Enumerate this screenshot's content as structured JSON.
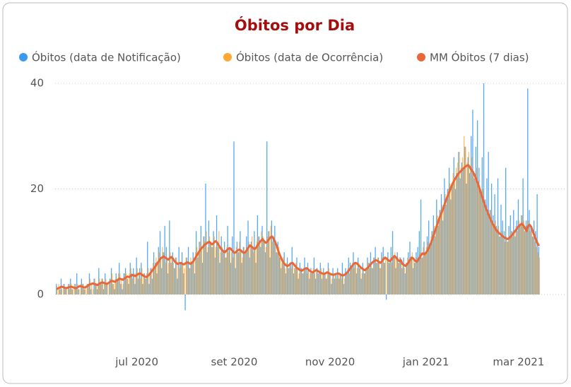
{
  "chart_data": {
    "type": "combo",
    "title": "Óbitos por Dia",
    "xlim": [
      -1,
      308
    ],
    "xticks": [
      {
        "value": 51,
        "label": "jul 2020"
      },
      {
        "value": 113,
        "label": "set 2020"
      },
      {
        "value": 174,
        "label": "nov 2020"
      },
      {
        "value": 235,
        "label": "jan 2021"
      },
      {
        "value": 294,
        "label": "mar 2021"
      }
    ],
    "ylim": [
      -5,
      40
    ],
    "yticks": [
      0,
      20,
      40
    ],
    "grid": true,
    "legend": "top",
    "series": [
      {
        "name": "Óbitos (data de Notificação)",
        "type": "bar",
        "color": "#3a9af0",
        "values": [
          2,
          0,
          1,
          3,
          0,
          2,
          1,
          0,
          2,
          3,
          1,
          0,
          2,
          4,
          1,
          0,
          3,
          2,
          1,
          0,
          2,
          4,
          1,
          0,
          3,
          2,
          1,
          5,
          2,
          3,
          1,
          4,
          2,
          0,
          3,
          5,
          2,
          1,
          4,
          3,
          6,
          2,
          1,
          4,
          5,
          3,
          2,
          6,
          4,
          5,
          2,
          7,
          3,
          5,
          6,
          2,
          4,
          3,
          10,
          2,
          5,
          3,
          8,
          6,
          4,
          9,
          12,
          5,
          8,
          13,
          9,
          4,
          14,
          6,
          8,
          5,
          7,
          3,
          9,
          6,
          8,
          4,
          -3,
          7,
          9,
          5,
          6,
          8,
          4,
          12,
          7,
          10,
          13,
          6,
          11,
          21,
          8,
          14,
          10,
          9,
          12,
          7,
          15,
          9,
          6,
          11,
          8,
          10,
          7,
          13,
          9,
          6,
          11,
          29,
          5,
          10,
          8,
          12,
          6,
          9,
          8,
          11,
          14,
          7,
          10,
          9,
          12,
          6,
          15,
          11,
          9,
          13,
          10,
          8,
          29,
          12,
          7,
          14,
          11,
          13,
          8,
          10,
          7,
          5,
          6,
          8,
          4,
          7,
          5,
          6,
          9,
          4,
          5,
          7,
          3,
          6,
          5,
          4,
          7,
          5,
          6,
          3,
          5,
          4,
          7,
          3,
          5,
          4,
          6,
          3,
          5,
          4,
          3,
          6,
          4,
          2,
          5,
          3,
          4,
          5,
          3,
          4,
          6,
          2,
          5,
          4,
          7,
          6,
          5,
          8,
          6,
          4,
          7,
          5,
          3,
          6,
          4,
          5,
          7,
          6,
          8,
          5,
          7,
          9,
          6,
          7,
          5,
          8,
          9,
          6,
          -1,
          8,
          6,
          9,
          12,
          7,
          5,
          8,
          6,
          7,
          5,
          7,
          4,
          6,
          8,
          10,
          7,
          5,
          6,
          8,
          9,
          12,
          18,
          7,
          10,
          8,
          11,
          14,
          9,
          12,
          15,
          11,
          18,
          13,
          16,
          19,
          14,
          22,
          17,
          20,
          24,
          18,
          21,
          26,
          20,
          23,
          27,
          22,
          25,
          24,
          28,
          21,
          26,
          23,
          30,
          35,
          22,
          28,
          33,
          24,
          20,
          26,
          40,
          18,
          22,
          27,
          16,
          21,
          15,
          19,
          13,
          22,
          11,
          17,
          14,
          12,
          24,
          10,
          13,
          15,
          12,
          16,
          11,
          14,
          18,
          13,
          15,
          22,
          12,
          14,
          39,
          16,
          13,
          11,
          14,
          12,
          19,
          9
        ]
      },
      {
        "name": "Óbitos (data de Ocorrência)",
        "type": "bar",
        "color": "#ffa733",
        "values": [
          1,
          2,
          1,
          1,
          2,
          1,
          1,
          2,
          1,
          2,
          1,
          2,
          1,
          2,
          1,
          2,
          2,
          1,
          1,
          2,
          2,
          3,
          2,
          1,
          3,
          2,
          2,
          3,
          2,
          3,
          2,
          3,
          2,
          2,
          3,
          4,
          2,
          3,
          3,
          4,
          4,
          3,
          2,
          4,
          4,
          3,
          4,
          5,
          3,
          4,
          4,
          5,
          4,
          3,
          5,
          4,
          3,
          4,
          5,
          4,
          5,
          6,
          5,
          7,
          6,
          8,
          7,
          9,
          8,
          6,
          7,
          6,
          8,
          7,
          6,
          5,
          7,
          6,
          5,
          6,
          6,
          5,
          7,
          6,
          5,
          7,
          6,
          7,
          8,
          9,
          8,
          10,
          9,
          11,
          10,
          12,
          9,
          11,
          10,
          9,
          11,
          9,
          10,
          12,
          8,
          9,
          8,
          7,
          9,
          8,
          9,
          8,
          7,
          8,
          9,
          8,
          10,
          8,
          7,
          9,
          8,
          9,
          10,
          9,
          11,
          8,
          9,
          10,
          11,
          10,
          12,
          11,
          10,
          9,
          11,
          12,
          13,
          10,
          11,
          9,
          8,
          9,
          7,
          6,
          7,
          5,
          6,
          5,
          6,
          5,
          6,
          5,
          6,
          5,
          4,
          5,
          4,
          5,
          5,
          4,
          5,
          4,
          4,
          5,
          4,
          5,
          4,
          4,
          5,
          4,
          4,
          3,
          4,
          5,
          4,
          3,
          4,
          4,
          3,
          4,
          4,
          3,
          4,
          3,
          4,
          5,
          4,
          5,
          6,
          5,
          6,
          5,
          6,
          5,
          4,
          5,
          4,
          5,
          6,
          5,
          6,
          5,
          7,
          6,
          7,
          6,
          5,
          7,
          6,
          7,
          7,
          6,
          7,
          6,
          7,
          8,
          7,
          6,
          7,
          6,
          6,
          5,
          6,
          7,
          6,
          7,
          8,
          7,
          6,
          7,
          7,
          8,
          7,
          9,
          8,
          9,
          10,
          9,
          11,
          12,
          13,
          12,
          15,
          14,
          16,
          17,
          16,
          19,
          18,
          20,
          21,
          20,
          23,
          22,
          24,
          25,
          27,
          24,
          26,
          30,
          28,
          25,
          27,
          24,
          26,
          23,
          22,
          24,
          21,
          20,
          19,
          20,
          18,
          17,
          16,
          15,
          16,
          14,
          13,
          14,
          12,
          13,
          11,
          12,
          11,
          10,
          11,
          10,
          11,
          12,
          11,
          12,
          13,
          12,
          14,
          13,
          15,
          14,
          12,
          13,
          14,
          12,
          13,
          11,
          10,
          9,
          8,
          7
        ]
      },
      {
        "name": "MM Óbitos (7 dias)",
        "type": "line",
        "color": "#e8683a",
        "values": [
          1,
          1.2,
          1.3,
          1.5,
          1.4,
          1.3,
          1.2,
          1.3,
          1.4,
          1.5,
          1.4,
          1.3,
          1.2,
          1.3,
          1.5,
          1.6,
          1.5,
          1.4,
          1.3,
          1.5,
          1.7,
          1.9,
          2,
          2.1,
          2,
          1.9,
          1.8,
          2,
          2.2,
          2.3,
          2.2,
          2.1,
          2,
          2.2,
          2.4,
          2.6,
          2.5,
          2.4,
          2.6,
          2.8,
          3,
          2.9,
          2.8,
          3,
          3.2,
          3.4,
          3.3,
          3.5,
          3.7,
          3.6,
          3.5,
          3.7,
          3.9,
          4,
          3.8,
          3.6,
          3.4,
          3.3,
          3.5,
          3.8,
          4.2,
          4.6,
          5,
          5.4,
          5.9,
          6.3,
          6.8,
          7,
          7.2,
          7,
          6.8,
          6.6,
          6.9,
          7.1,
          6.8,
          6.3,
          6,
          5.8,
          5.9,
          6,
          5.8,
          5.7,
          5.9,
          6.1,
          6,
          5.8,
          6,
          6.3,
          6.8,
          7.3,
          7.8,
          8.3,
          8.7,
          9,
          9.4,
          9.6,
          9.8,
          10,
          9.7,
          9.5,
          9.8,
          10.1,
          9.9,
          9.4,
          8.9,
          8.5,
          8.2,
          8,
          8.3,
          8.6,
          8.8,
          8.6,
          8.2,
          7.9,
          8,
          8.3,
          8.5,
          8.4,
          8.1,
          7.9,
          8,
          8.4,
          8.9,
          9.3,
          9.1,
          8.8,
          8.6,
          8.9,
          9.4,
          9.8,
          10.2,
          10.5,
          10.1,
          9.8,
          10,
          10.4,
          10.8,
          11,
          10.6,
          10,
          9.2,
          8.3,
          7.5,
          6.8,
          6.2,
          5.8,
          5.5,
          5.4,
          5.6,
          5.9,
          6,
          5.7,
          5.3,
          5,
          4.8,
          4.6,
          4.5,
          4.7,
          4.9,
          5,
          4.8,
          4.5,
          4.3,
          4.2,
          4.4,
          4.6,
          4.5,
          4.3,
          4.1,
          4,
          3.9,
          4,
          4.2,
          4.1,
          3.9,
          3.8,
          3.7,
          3.8,
          3.9,
          4,
          3.9,
          3.7,
          3.6,
          3.7,
          3.9,
          4.2,
          4.6,
          5,
          5.4,
          5.8,
          6,
          5.9,
          5.6,
          5.3,
          5,
          4.8,
          4.6,
          4.8,
          5.1,
          5.4,
          5.8,
          6.1,
          6.3,
          6.5,
          6.4,
          6.2,
          6,
          6.3,
          6.7,
          7,
          6.8,
          6.5,
          6.3,
          6.6,
          7,
          7.3,
          7,
          6.6,
          6.3,
          6.5,
          5.8,
          5.6,
          5.4,
          5.7,
          6.1,
          6.6,
          7,
          6.8,
          6.4,
          6.2,
          6.5,
          7,
          7.5,
          7.8,
          7.6,
          7.9,
          8.3,
          8.9,
          9.6,
          10.4,
          11.3,
          12.2,
          13.1,
          14,
          14.8,
          15.5,
          16.3,
          17.2,
          18,
          18.8,
          19.5,
          20.3,
          21,
          21.6,
          22.1,
          22.6,
          23,
          23.3,
          23.6,
          23.9,
          24.2,
          24.4,
          24.5,
          24.1,
          23.6,
          23.2,
          22.6,
          21.9,
          21.1,
          20.2,
          19.2,
          18.3,
          17.4,
          16.5,
          15.8,
          15,
          14.4,
          13.7,
          13.1,
          12.6,
          12.1,
          11.8,
          11.5,
          11.3,
          11,
          10.8,
          10.6,
          10.5,
          10.7,
          11,
          11.3,
          11.7,
          12.1,
          12.5,
          12.9,
          13.2,
          13.4,
          13.1,
          12.6,
          12,
          13,
          13.2,
          12.8,
          12,
          11.2,
          10.4,
          9.7,
          9.2
        ]
      }
    ]
  }
}
